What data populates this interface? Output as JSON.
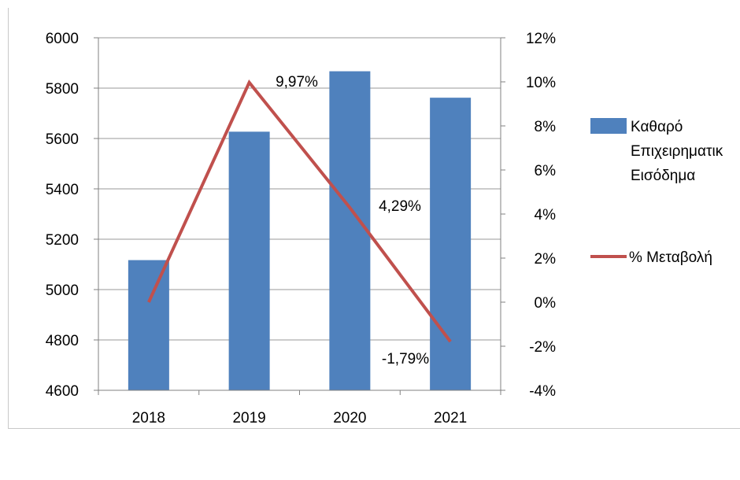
{
  "chart_data": {
    "type": "bar",
    "categories": [
      "2018",
      "2019",
      "2020",
      "2021"
    ],
    "series": [
      {
        "name": "Καθαρό Επιχειρηματικό Εισόδημα",
        "legend_lines": [
          "Καθαρό",
          "Επιχειρηματικ",
          "Εισόδημα"
        ],
        "type": "bar",
        "axis": "left",
        "color": "#4f81bd",
        "values": [
          5117,
          5627,
          5867,
          5762
        ]
      },
      {
        "name": "% Μεταβολή",
        "legend_lines": [
          "% Μεταβολή"
        ],
        "type": "line",
        "axis": "right",
        "color": "#c0504d",
        "values": [
          0,
          9.97,
          4.29,
          -1.79
        ],
        "data_labels": [
          "",
          "9,97%",
          "4,29%",
          "-1,79%"
        ]
      }
    ],
    "y_left": {
      "min": 4600,
      "max": 6000,
      "step": 200,
      "ticks": [
        "4600",
        "4800",
        "5000",
        "5200",
        "5400",
        "5600",
        "5800",
        "6000"
      ]
    },
    "y_right": {
      "min": -4,
      "max": 12,
      "step": 2,
      "ticks": [
        "-4%",
        "-2%",
        "0%",
        "2%",
        "4%",
        "6%",
        "8%",
        "10%",
        "12%"
      ]
    },
    "grid": true,
    "legend_position": "right"
  }
}
